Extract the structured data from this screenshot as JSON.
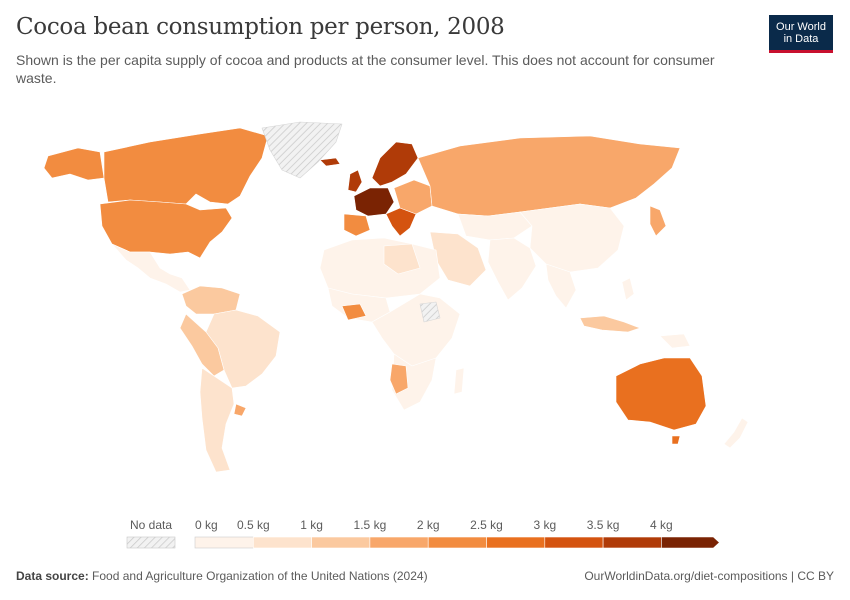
{
  "header": {
    "title": "Cocoa bean consumption per person, 2008",
    "subtitle": "Shown is the per capita supply of cocoa and products at the consumer level. This does not account for consumer waste."
  },
  "logo": {
    "line1": "Our World",
    "line2": "in Data"
  },
  "legend": {
    "no_data_label": "No data",
    "ticks": [
      "0 kg",
      "0.5 kg",
      "1 kg",
      "1.5 kg",
      "2 kg",
      "2.5 kg",
      "3 kg",
      "3.5 kg",
      "4 kg"
    ],
    "colors": [
      "#fef3ea",
      "#fde3cd",
      "#fbc99f",
      "#f8a76a",
      "#f28c40",
      "#e9701f",
      "#d4530f",
      "#b03b08",
      "#7a2303"
    ]
  },
  "footer": {
    "source_label": "Data source:",
    "source_text": "Food and Agriculture Organization of the United Nations (2024)",
    "url": "OurWorldinData.org/diet-compositions | CC BY"
  }
}
